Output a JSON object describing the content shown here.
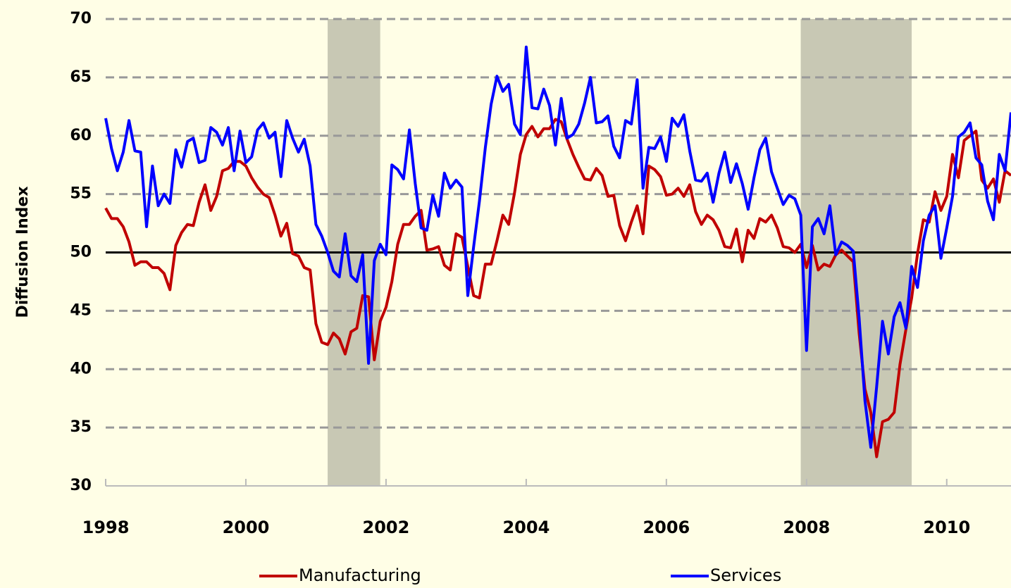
{
  "chart_data": {
    "type": "line",
    "y_label": "Diffusion Index",
    "xlim": [
      1998,
      2010.917
    ],
    "xticks": [
      1998,
      2000,
      2002,
      2004,
      2006,
      2008,
      2010
    ],
    "ylim": [
      30,
      70
    ],
    "yticks": [
      30,
      35,
      40,
      45,
      50,
      55,
      60,
      65,
      70
    ],
    "grid": true,
    "reference_line": 50,
    "recessions": [
      [
        2001.167,
        2001.917
      ],
      [
        2007.917,
        2009.5
      ]
    ],
    "recession_color": "#c8c8b4",
    "legend": "bottom",
    "x": [
      1998,
      1998.083,
      1998.167,
      1998.25,
      1998.333,
      1998.417,
      1998.5,
      1998.583,
      1998.667,
      1998.75,
      1998.833,
      1998.917,
      1999,
      1999.083,
      1999.167,
      1999.25,
      1999.333,
      1999.417,
      1999.5,
      1999.583,
      1999.667,
      1999.75,
      1999.833,
      1999.917,
      2000,
      2000.083,
      2000.167,
      2000.25,
      2000.333,
      2000.417,
      2000.5,
      2000.583,
      2000.667,
      2000.75,
      2000.833,
      2000.917,
      2001,
      2001.083,
      2001.167,
      2001.25,
      2001.333,
      2001.417,
      2001.5,
      2001.583,
      2001.667,
      2001.75,
      2001.833,
      2001.917,
      2002,
      2002.083,
      2002.167,
      2002.25,
      2002.333,
      2002.417,
      2002.5,
      2002.583,
      2002.667,
      2002.75,
      2002.833,
      2002.917,
      2003,
      2003.083,
      2003.167,
      2003.25,
      2003.333,
      2003.417,
      2003.5,
      2003.583,
      2003.667,
      2003.75,
      2003.833,
      2003.917,
      2004,
      2004.083,
      2004.167,
      2004.25,
      2004.333,
      2004.417,
      2004.5,
      2004.583,
      2004.667,
      2004.75,
      2004.833,
      2004.917,
      2005,
      2005.083,
      2005.167,
      2005.25,
      2005.333,
      2005.417,
      2005.5,
      2005.583,
      2005.667,
      2005.75,
      2005.833,
      2005.917,
      2006,
      2006.083,
      2006.167,
      2006.25,
      2006.333,
      2006.417,
      2006.5,
      2006.583,
      2006.667,
      2006.75,
      2006.833,
      2006.917,
      2007,
      2007.083,
      2007.167,
      2007.25,
      2007.333,
      2007.417,
      2007.5,
      2007.583,
      2007.667,
      2007.75,
      2007.833,
      2007.917,
      2008,
      2008.083,
      2008.167,
      2008.25,
      2008.333,
      2008.417,
      2008.5,
      2008.583,
      2008.667,
      2008.75,
      2008.833,
      2008.917,
      2009,
      2009.083,
      2009.167,
      2009.25,
      2009.333,
      2009.417,
      2009.5,
      2009.583,
      2009.667,
      2009.75,
      2009.833,
      2009.917,
      2010,
      2010.083,
      2010.167,
      2010.25,
      2010.333,
      2010.417,
      2010.5,
      2010.583,
      2010.667,
      2010.75,
      2010.833,
      2010.917
    ],
    "series": [
      {
        "name": "Manufacturing",
        "color": "#c00000",
        "values": [
          53.8,
          52.9,
          52.9,
          52.2,
          50.9,
          48.9,
          49.2,
          49.2,
          48.7,
          48.7,
          48.2,
          46.8,
          50.6,
          51.7,
          52.4,
          52.3,
          54.3,
          55.8,
          53.6,
          54.8,
          57.0,
          57.2,
          57.8,
          57.8,
          57.4,
          56.4,
          55.6,
          55.0,
          54.7,
          53.2,
          51.4,
          52.5,
          49.9,
          49.7,
          48.7,
          48.5,
          43.9,
          42.3,
          42.1,
          43.1,
          42.6,
          41.3,
          43.2,
          43.5,
          46.3,
          46.2,
          40.8,
          44.1,
          45.3,
          47.5,
          50.7,
          52.4,
          52.4,
          53.1,
          53.6,
          50.2,
          50.3,
          50.5,
          48.9,
          48.5,
          51.6,
          51.3,
          48.8,
          46.3,
          46.1,
          49.0,
          49.0,
          51.0,
          53.2,
          52.4,
          55.1,
          58.4,
          60.1,
          60.8,
          59.9,
          60.6,
          60.6,
          61.4,
          61.2,
          59.7,
          58.4,
          57.3,
          56.3,
          56.2,
          57.2,
          56.6,
          54.8,
          54.9,
          52.3,
          51.0,
          52.6,
          54.0,
          51.6,
          57.4,
          57.1,
          56.5,
          54.9,
          55.0,
          55.5,
          54.8,
          55.8,
          53.5,
          52.4,
          53.2,
          52.8,
          51.9,
          50.5,
          50.4,
          52.0,
          49.2,
          51.9,
          51.2,
          52.9,
          52.6,
          53.2,
          52.1,
          50.5,
          50.4,
          50.0,
          50.7,
          48.7,
          50.6,
          48.5,
          49.0,
          48.8,
          49.8,
          50.2,
          49.7,
          49.2,
          43.1,
          38.3,
          36.3,
          32.5,
          35.5,
          35.7,
          36.3,
          40.4,
          43.4,
          46.1,
          49.9,
          52.8,
          52.6,
          55.2,
          53.6,
          54.8,
          58.4,
          56.4,
          59.6,
          60.0,
          60.4,
          56.2,
          55.5,
          56.3,
          54.3,
          57.0,
          56.6
        ]
      },
      {
        "name": "Services",
        "color": "#0000ff",
        "values": [
          61.5,
          58.9,
          57.0,
          58.6,
          61.3,
          58.7,
          58.6,
          52.2,
          57.4,
          54.0,
          55.0,
          54.2,
          58.8,
          57.3,
          59.5,
          59.8,
          57.7,
          57.9,
          60.7,
          60.3,
          59.2,
          60.7,
          57.0,
          60.4,
          57.7,
          58.2,
          60.5,
          61.1,
          59.8,
          60.3,
          56.5,
          61.3,
          59.8,
          58.6,
          59.7,
          57.4,
          52.4,
          51.4,
          50.0,
          48.4,
          47.9,
          51.6,
          48.0,
          47.5,
          49.8,
          40.5,
          49.3,
          50.7,
          49.8,
          57.5,
          57.1,
          56.3,
          60.5,
          55.9,
          52.1,
          51.9,
          54.9,
          53.1,
          56.8,
          55.5,
          56.2,
          55.6,
          46.3,
          50.5,
          54.4,
          59.0,
          62.7,
          65.1,
          63.8,
          64.4,
          61.0,
          60.1,
          67.6,
          62.4,
          62.3,
          64.0,
          62.6,
          59.2,
          63.2,
          59.8,
          60.1,
          61.0,
          62.8,
          65.0,
          61.1,
          61.2,
          61.7,
          59.1,
          58.1,
          61.3,
          61.0,
          64.8,
          55.5,
          59.0,
          58.9,
          59.9,
          57.8,
          61.5,
          60.8,
          61.8,
          58.7,
          56.2,
          56.1,
          56.8,
          54.3,
          56.8,
          58.6,
          56.0,
          57.6,
          55.9,
          53.7,
          56.4,
          58.8,
          59.8,
          56.9,
          55.5,
          54.1,
          54.9,
          54.6,
          53.2,
          41.6,
          52.2,
          52.9,
          51.6,
          54.0,
          49.8,
          50.9,
          50.6,
          50.1,
          44.4,
          37.3,
          33.3,
          38.5,
          44.1,
          41.3,
          44.5,
          45.7,
          43.5,
          48.8,
          47.0,
          51.0,
          53.2,
          54.0,
          49.5,
          52.1,
          54.8,
          59.9,
          60.3,
          61.1,
          58.1,
          57.5,
          54.4,
          52.8,
          58.4,
          57.0,
          62.0
        ]
      }
    ]
  }
}
